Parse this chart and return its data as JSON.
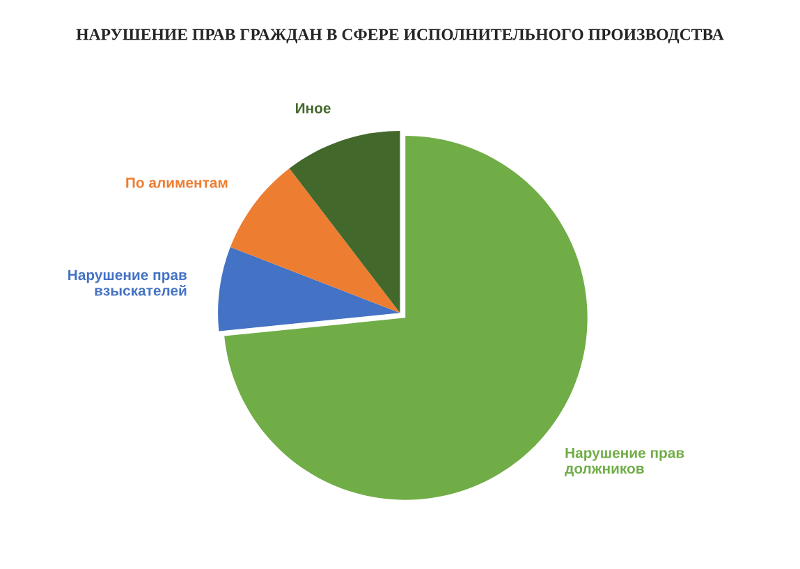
{
  "chart_data": {
    "type": "pie",
    "title": "НАРУШЕНИЕ ПРАВ ГРАЖДАН В СФЕРЕ ИСПОЛНИТЕЛЬНОГО ПРОИЗВОДСТВА",
    "categories": [
      "Нарушение прав\nдолжников",
      "Нарушение прав\nвзыскателей",
      "По алиментам",
      "Иное"
    ],
    "values": [
      73.4,
      7.5,
      8.7,
      10.4
    ],
    "colors": [
      "#70ad47",
      "#4472c4",
      "#ed7d31",
      "#43682b"
    ],
    "legend": false
  }
}
